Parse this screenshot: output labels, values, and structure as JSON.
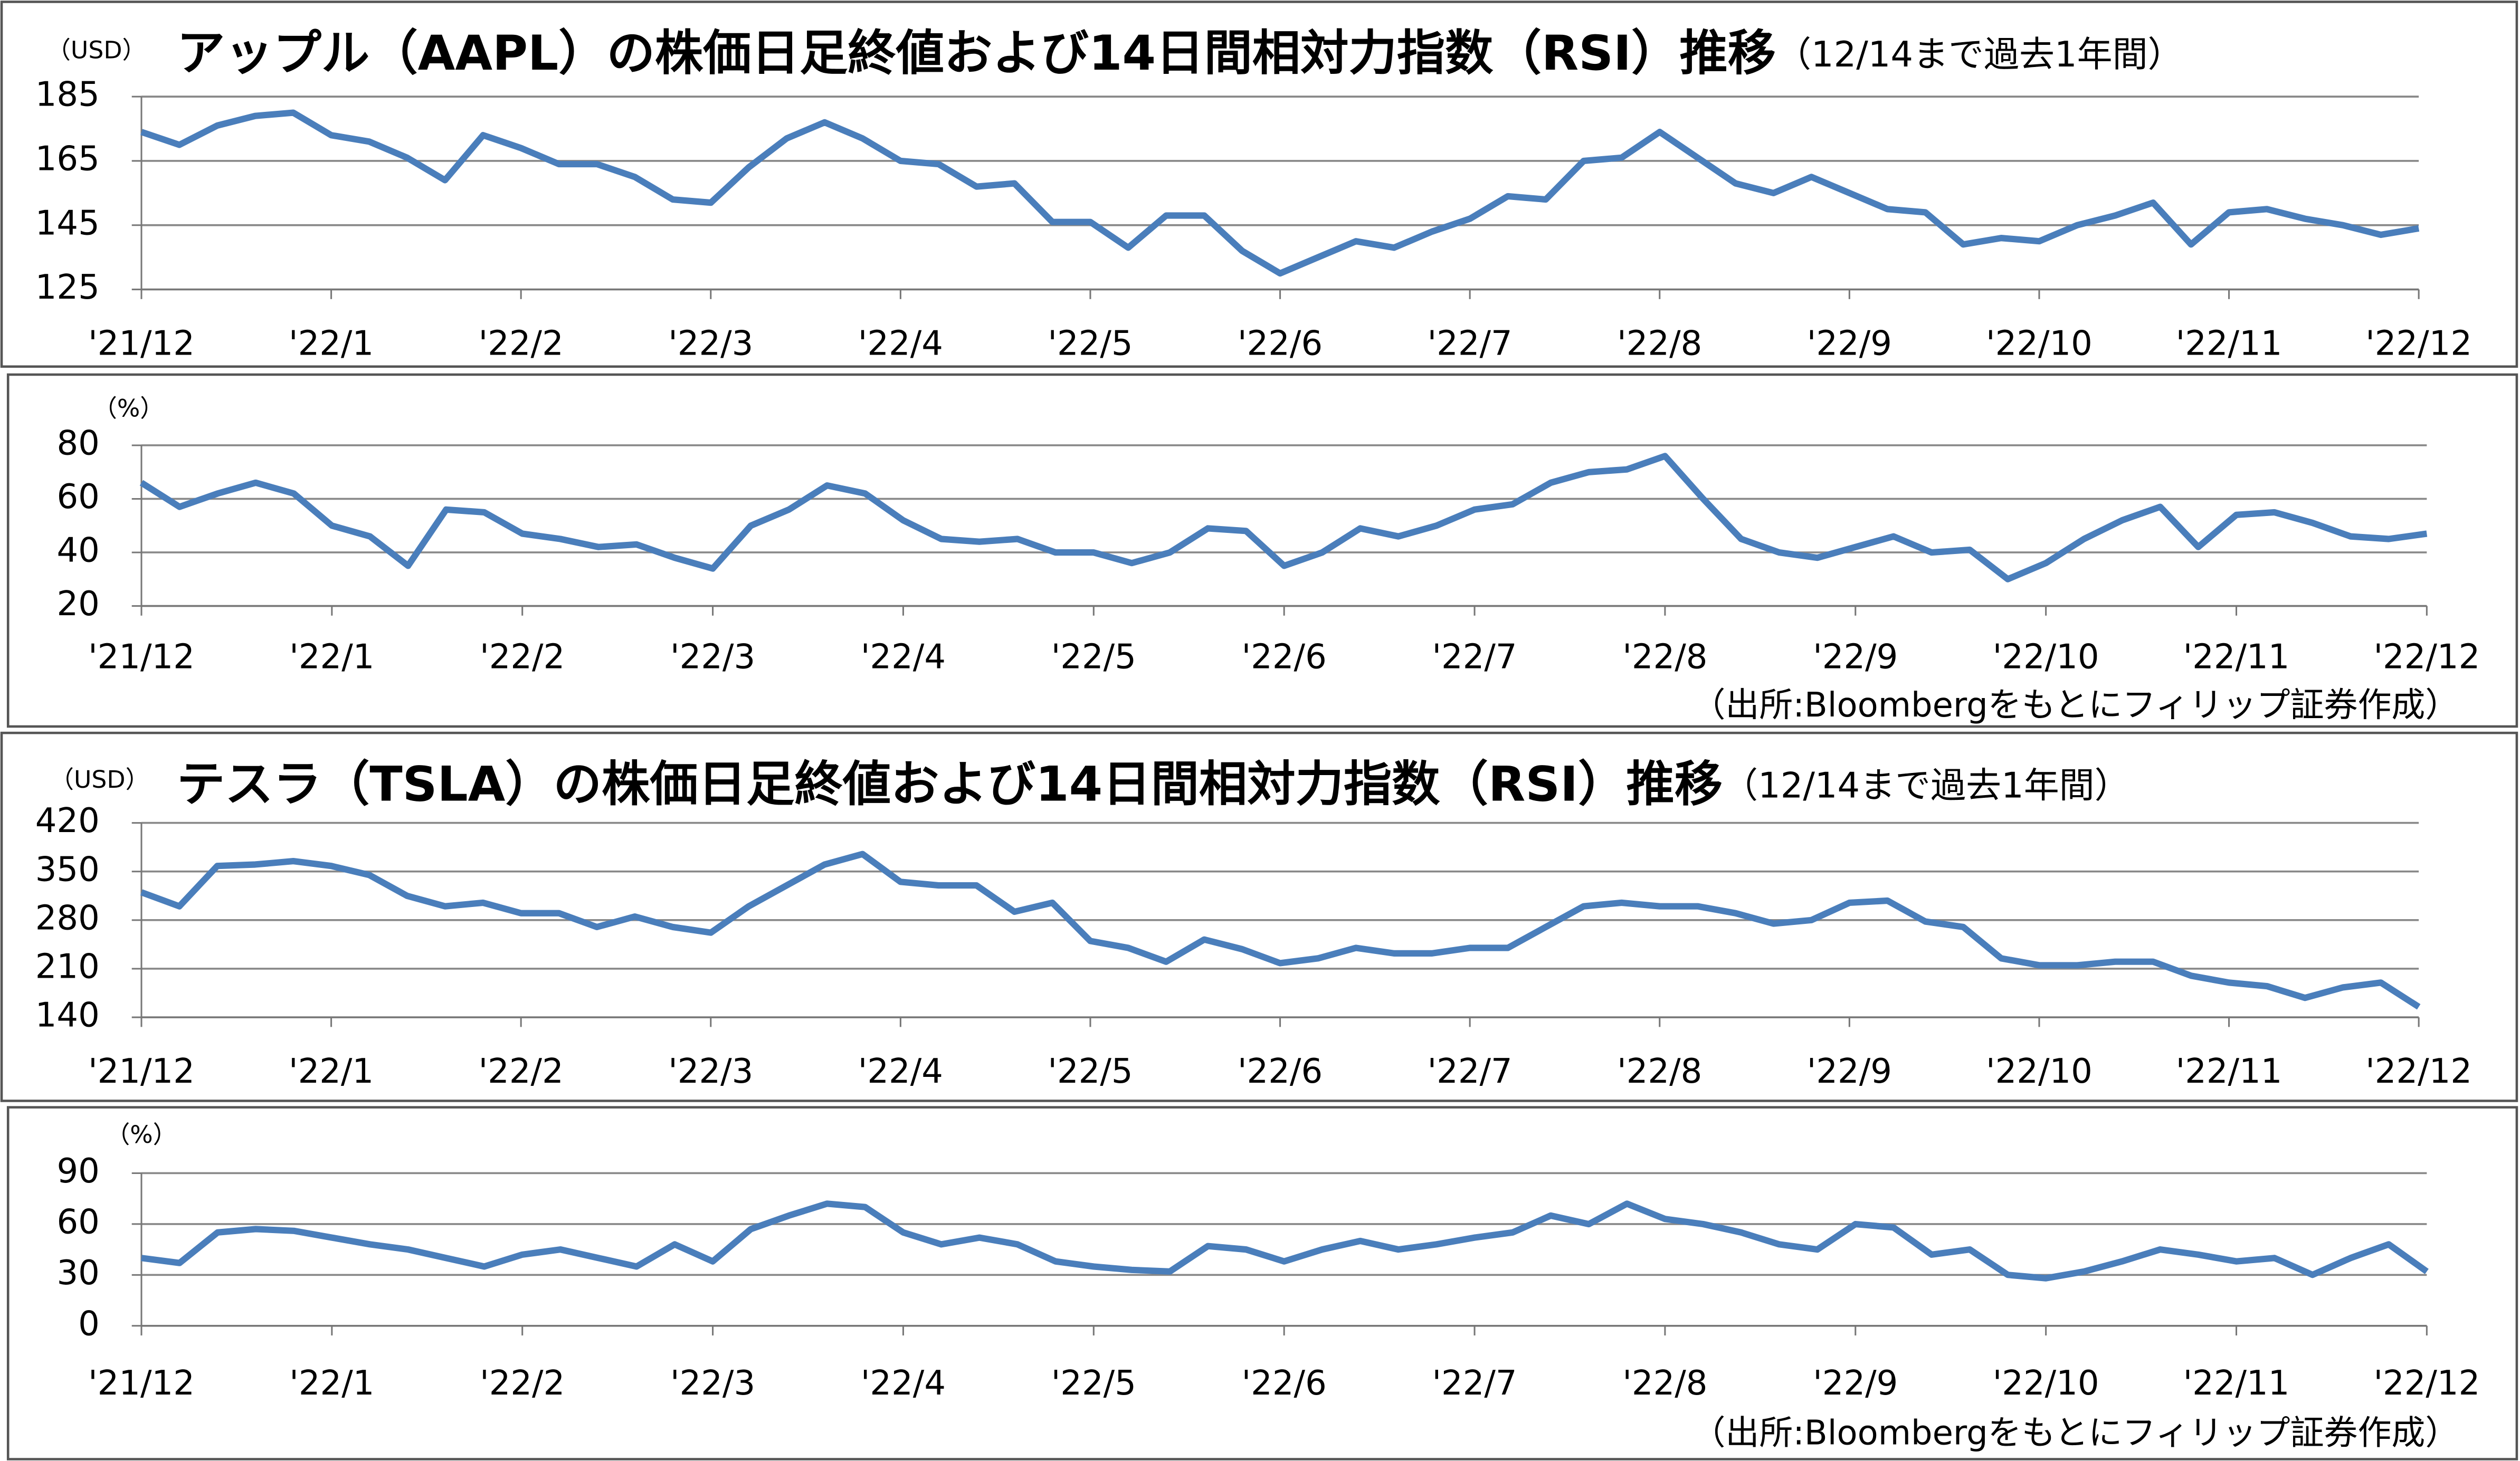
{
  "chart_data": [
    {
      "type": "line",
      "title": "アップル（AAPL）の株価日足終値および14日間相対力指数（RSI）推移",
      "subtitle": "（12/14まで過去1年間）",
      "y_unit": "（USD）",
      "categories": [
        "'21/12",
        null,
        null,
        null,
        null,
        "'22/1",
        null,
        null,
        null,
        null,
        "'22/2",
        null,
        null,
        null,
        null,
        "'22/3",
        null,
        null,
        null,
        null,
        "'22/4",
        null,
        null,
        null,
        null,
        "'22/5",
        null,
        null,
        null,
        null,
        "'22/6",
        null,
        null,
        null,
        null,
        "'22/7",
        null,
        null,
        null,
        null,
        "'22/8",
        null,
        null,
        null,
        null,
        "'22/9",
        null,
        null,
        null,
        null,
        "'22/10",
        null,
        null,
        null,
        null,
        "'22/11",
        null,
        null,
        null,
        null,
        "'22/12"
      ],
      "values": [
        174,
        170,
        176,
        179,
        180,
        173,
        171,
        166,
        159,
        173,
        169,
        164,
        164,
        160,
        153,
        152,
        163,
        172,
        177,
        172,
        165,
        164,
        157,
        158,
        146,
        146,
        138,
        148,
        148,
        137,
        130,
        135,
        140,
        138,
        143,
        147,
        154,
        153,
        165,
        166,
        174,
        166,
        158,
        155,
        160,
        155,
        150,
        149,
        139,
        141,
        140,
        145,
        148,
        152,
        139,
        149,
        150,
        147,
        145,
        142,
        144
      ],
      "color": "#4a7ebb",
      "ylim": [
        125,
        185
      ],
      "yticks": [
        125,
        145,
        165,
        185
      ],
      "grid": true
    },
    {
      "type": "line",
      "y_unit": "（%）",
      "note": "（出所:Bloombergをもとにフィリップ証券作成）",
      "categories": [
        "'21/12",
        null,
        null,
        null,
        null,
        "'22/1",
        null,
        null,
        null,
        null,
        "'22/2",
        null,
        null,
        null,
        null,
        "'22/3",
        null,
        null,
        null,
        null,
        "'22/4",
        null,
        null,
        null,
        null,
        "'22/5",
        null,
        null,
        null,
        null,
        "'22/6",
        null,
        null,
        null,
        null,
        "'22/7",
        null,
        null,
        null,
        null,
        "'22/8",
        null,
        null,
        null,
        null,
        "'22/9",
        null,
        null,
        null,
        null,
        "'22/10",
        null,
        null,
        null,
        null,
        "'22/11",
        null,
        null,
        null,
        null,
        "'22/12"
      ],
      "values": [
        66,
        57,
        62,
        66,
        62,
        50,
        46,
        35,
        56,
        55,
        47,
        45,
        42,
        43,
        38,
        34,
        50,
        56,
        65,
        62,
        52,
        45,
        44,
        45,
        40,
        40,
        36,
        40,
        49,
        48,
        35,
        40,
        49,
        46,
        50,
        56,
        58,
        66,
        70,
        71,
        76,
        60,
        45,
        40,
        38,
        42,
        46,
        40,
        41,
        30,
        36,
        45,
        52,
        57,
        42,
        54,
        55,
        51,
        46,
        45,
        47
      ],
      "color": "#4a7ebb",
      "ylim": [
        20,
        80
      ],
      "yticks": [
        20,
        40,
        60,
        80
      ],
      "grid": true
    },
    {
      "type": "line",
      "title": "テスラ（TSLA）の株価日足終値および14日間相対力指数（RSI）推移",
      "subtitle": "（12/14まで過去1年間）",
      "y_unit": "（USD）",
      "categories": [
        "'21/12",
        null,
        null,
        null,
        null,
        "'22/1",
        null,
        null,
        null,
        null,
        "'22/2",
        null,
        null,
        null,
        null,
        "'22/3",
        null,
        null,
        null,
        null,
        "'22/4",
        null,
        null,
        null,
        null,
        "'22/5",
        null,
        null,
        null,
        null,
        "'22/6",
        null,
        null,
        null,
        null,
        "'22/7",
        null,
        null,
        null,
        null,
        "'22/8",
        null,
        null,
        null,
        null,
        "'22/9",
        null,
        null,
        null,
        null,
        "'22/10",
        null,
        null,
        null,
        null,
        "'22/11",
        null,
        null,
        null,
        null,
        "'22/12"
      ],
      "values": [
        320,
        300,
        358,
        360,
        365,
        358,
        345,
        315,
        300,
        305,
        290,
        290,
        270,
        285,
        270,
        262,
        300,
        330,
        360,
        375,
        335,
        330,
        330,
        292,
        305,
        250,
        240,
        220,
        252,
        238,
        218,
        225,
        240,
        232,
        232,
        240,
        240,
        270,
        300,
        305,
        300,
        300,
        290,
        275,
        280,
        305,
        308,
        278,
        270,
        225,
        215,
        215,
        220,
        220,
        200,
        190,
        185,
        168,
        183,
        190,
        155
      ],
      "color": "#4a7ebb",
      "ylim": [
        140,
        420
      ],
      "yticks": [
        140,
        210,
        280,
        350,
        420
      ],
      "grid": true
    },
    {
      "type": "line",
      "y_unit": "（%）",
      "note": "（出所:Bloombergをもとにフィリップ証券作成）",
      "categories": [
        "'21/12",
        null,
        null,
        null,
        null,
        "'22/1",
        null,
        null,
        null,
        null,
        "'22/2",
        null,
        null,
        null,
        null,
        "'22/3",
        null,
        null,
        null,
        null,
        "'22/4",
        null,
        null,
        null,
        null,
        "'22/5",
        null,
        null,
        null,
        null,
        "'22/6",
        null,
        null,
        null,
        null,
        "'22/7",
        null,
        null,
        null,
        null,
        "'22/8",
        null,
        null,
        null,
        null,
        "'22/9",
        null,
        null,
        null,
        null,
        "'22/10",
        null,
        null,
        null,
        null,
        "'22/11",
        null,
        null,
        null,
        null,
        "'22/12"
      ],
      "values": [
        40,
        37,
        55,
        57,
        56,
        52,
        48,
        45,
        40,
        35,
        42,
        45,
        40,
        35,
        48,
        38,
        57,
        65,
        72,
        70,
        55,
        48,
        52,
        48,
        38,
        35,
        33,
        32,
        47,
        45,
        38,
        45,
        50,
        45,
        48,
        52,
        55,
        65,
        60,
        72,
        63,
        60,
        55,
        48,
        45,
        60,
        58,
        42,
        45,
        30,
        28,
        32,
        38,
        45,
        42,
        38,
        40,
        30,
        40,
        48,
        32
      ],
      "color": "#4a7ebb",
      "ylim": [
        0,
        90
      ],
      "yticks": [
        0,
        30,
        60,
        90
      ],
      "grid": true
    }
  ]
}
